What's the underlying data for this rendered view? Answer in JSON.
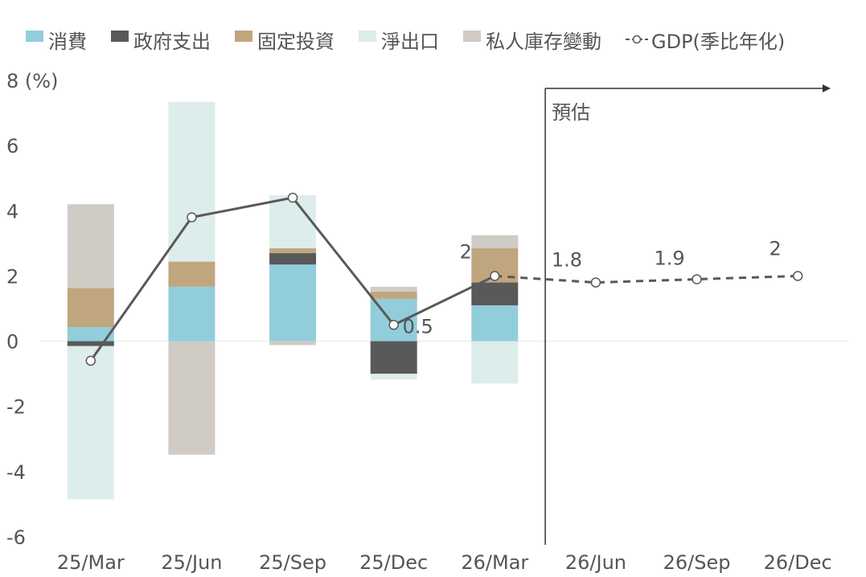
{
  "chart_data": {
    "type": "bar",
    "stacked": true,
    "categories": [
      "25/Mar",
      "25/Jun",
      "25/Sep",
      "25/Dec",
      "26/Mar",
      "26/Jun",
      "26/Sep",
      "26/Dec"
    ],
    "y_unit_label": "(%)",
    "ylim": [
      -6,
      8
    ],
    "yticks": [
      -6,
      -4,
      -2,
      0,
      2,
      4,
      6,
      8
    ],
    "series": [
      {
        "name": "消費",
        "color": "#92cddc",
        "values": [
          0.43,
          1.67,
          2.35,
          1.3,
          1.1,
          null,
          null,
          null
        ]
      },
      {
        "name": "政府支出",
        "color": "#595959",
        "values": [
          -0.15,
          0.0,
          0.35,
          -1.0,
          0.7,
          null,
          null,
          null
        ]
      },
      {
        "name": "固定投資",
        "color": "#c0a67e",
        "values": [
          1.2,
          0.77,
          0.15,
          0.22,
          1.05,
          null,
          null,
          null
        ]
      },
      {
        "name": "淨出口",
        "color": "#dcedeb",
        "values": [
          -4.7,
          4.9,
          1.63,
          -0.18,
          -1.3,
          null,
          null,
          null
        ]
      },
      {
        "name": "私人庫存變動",
        "color": "#d1cbc5",
        "values": [
          2.57,
          -3.48,
          -0.12,
          0.15,
          0.4,
          null,
          null,
          null
        ]
      }
    ],
    "gdp": {
      "name": "GDP(季比年化)",
      "color": "#595959",
      "values": [
        -0.6,
        3.8,
        4.4,
        0.5,
        2.0,
        1.8,
        1.9,
        2.0
      ],
      "labels": [
        "",
        "",
        "",
        "0.5",
        "2",
        "1.8",
        "1.9",
        "2"
      ],
      "forecast_from_index": 4
    },
    "forecast_label": "預估",
    "grid": false,
    "legend_position": "top"
  }
}
